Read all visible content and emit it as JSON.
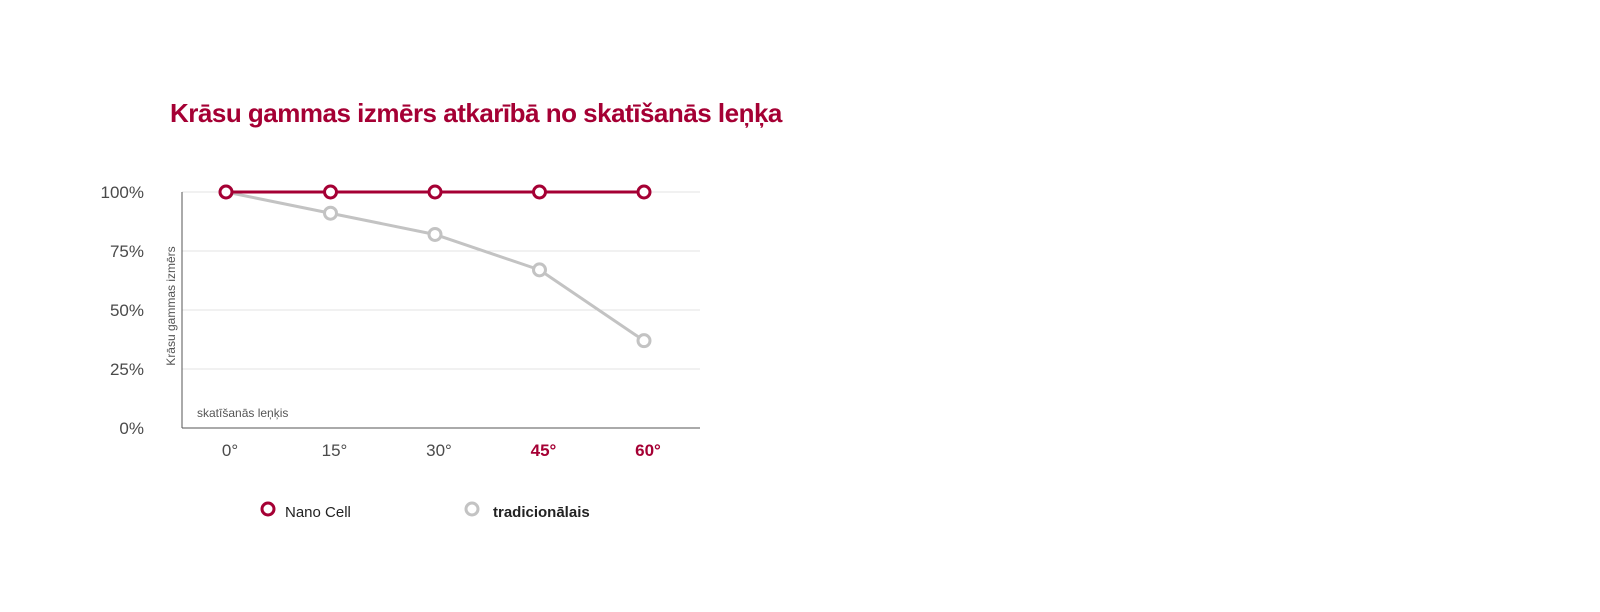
{
  "chart_data": {
    "type": "line",
    "title": "Krāsu gammas izmērs atkarībā no skatīšanās leņķa",
    "ylabel": "Krāsu gammas izmērs",
    "xlabel": "skatīšanās leņķis",
    "categories": [
      "0°",
      "15°",
      "30°",
      "45°",
      "60°"
    ],
    "highlighted_categories": [
      "45°",
      "60°"
    ],
    "ylim": [
      0,
      100
    ],
    "yticks": [
      "0%",
      "25%",
      "50%",
      "75%",
      "100%"
    ],
    "ytick_values": [
      0,
      25,
      50,
      75,
      100
    ],
    "grid": true,
    "legend_position": "bottom",
    "series": [
      {
        "name": "Nano Cell",
        "values": [
          100,
          100,
          100,
          100,
          100
        ],
        "color": "#a50034",
        "legend_bold": false
      },
      {
        "name": "tradicionālais",
        "values": [
          100,
          91,
          82,
          67,
          37
        ],
        "color": "#c3c3c3",
        "legend_bold": true
      }
    ]
  }
}
